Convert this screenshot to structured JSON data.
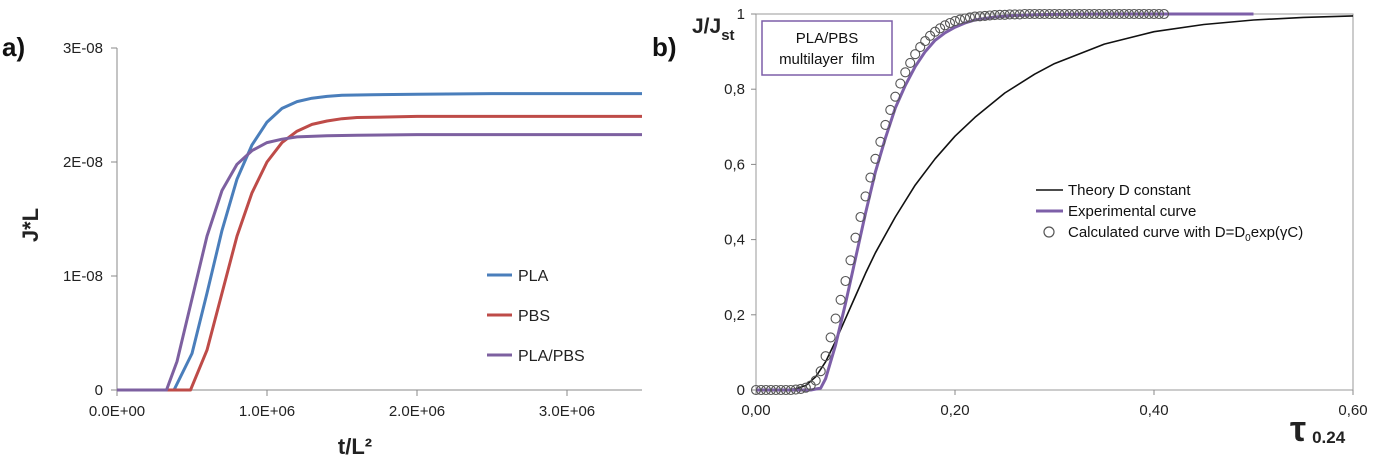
{
  "chart_data": [
    {
      "panel_label": "a)",
      "type": "line",
      "xlabel": "t/L²",
      "ylabel": "J*L",
      "xlim": [
        0,
        3500000
      ],
      "ylim": [
        0,
        3e-08
      ],
      "x_ticks": [
        {
          "value": 0,
          "label": "0.0E+00"
        },
        {
          "value": 1000000,
          "label": "1.0E+06"
        },
        {
          "value": 2000000,
          "label": "2.0E+06"
        },
        {
          "value": 3000000,
          "label": "3.0E+06"
        }
      ],
      "y_ticks": [
        {
          "value": 0,
          "label": "0"
        },
        {
          "value": 1e-08,
          "label": "1E-08"
        },
        {
          "value": 2e-08,
          "label": "2E-08"
        },
        {
          "value": 3e-08,
          "label": "3E-08"
        }
      ],
      "grid": false,
      "legend_position": "bottom-right",
      "series": [
        {
          "name": "PLA",
          "color": "#4a7ebb",
          "x": [
            0,
            380000,
            500000,
            600000,
            700000,
            800000,
            900000,
            1000000,
            1100000,
            1200000,
            1300000,
            1400000,
            1500000,
            1700000,
            2000000,
            2500000,
            3500000
          ],
          "y": [
            0,
            0,
            3.2e-09,
            8.5e-09,
            1.4e-08,
            1.85e-08,
            2.15e-08,
            2.35e-08,
            2.47e-08,
            2.53e-08,
            2.56e-08,
            2.575e-08,
            2.585e-08,
            2.59e-08,
            2.595e-08,
            2.6e-08,
            2.6e-08
          ]
        },
        {
          "name": "PBS",
          "color": "#be4b48",
          "x": [
            0,
            490000,
            600000,
            700000,
            800000,
            900000,
            1000000,
            1100000,
            1200000,
            1300000,
            1400000,
            1500000,
            1600000,
            1800000,
            2000000,
            2500000,
            3500000
          ],
          "y": [
            0,
            0,
            3.5e-09,
            8.5e-09,
            1.35e-08,
            1.73e-08,
            2e-08,
            2.17e-08,
            2.27e-08,
            2.33e-08,
            2.36e-08,
            2.38e-08,
            2.39e-08,
            2.395e-08,
            2.4e-08,
            2.4e-08,
            2.4e-08
          ]
        },
        {
          "name": "PLA/PBS",
          "color": "#7d60a0",
          "x": [
            0,
            330000,
            400000,
            500000,
            600000,
            700000,
            800000,
            900000,
            1000000,
            1100000,
            1200000,
            1400000,
            1600000,
            2000000,
            3500000
          ],
          "y": [
            0,
            0,
            2.5e-09,
            8e-09,
            1.35e-08,
            1.75e-08,
            1.98e-08,
            2.1e-08,
            2.17e-08,
            2.2e-08,
            2.22e-08,
            2.23e-08,
            2.235e-08,
            2.24e-08,
            2.24e-08
          ]
        }
      ]
    },
    {
      "panel_label": "b)",
      "type": "line",
      "xlabel": "τ",
      "xlabel_sub": "0.24",
      "ylabel": "J/J",
      "ylabel_sub": "st",
      "xlim": [
        0,
        0.6
      ],
      "ylim": [
        0,
        1
      ],
      "x_ticks": [
        {
          "value": 0,
          "label": "0,00"
        },
        {
          "value": 0.2,
          "label": "0,20"
        },
        {
          "value": 0.4,
          "label": "0,40"
        },
        {
          "value": 0.6,
          "label": "0,60"
        }
      ],
      "y_ticks": [
        {
          "value": 0,
          "label": "0"
        },
        {
          "value": 0.2,
          "label": "0,2"
        },
        {
          "value": 0.4,
          "label": "0,4"
        },
        {
          "value": 0.6,
          "label": "0,6"
        },
        {
          "value": 0.8,
          "label": "0,8"
        },
        {
          "value": 1,
          "label": "1"
        }
      ],
      "grid": false,
      "legend_position": "center-right",
      "annotation": {
        "line1": "PLA/PBS",
        "line2": "multilayer  film"
      },
      "series": [
        {
          "name": "Theory D constant",
          "style": "line",
          "color": "#111111",
          "x": [
            0,
            0.02,
            0.04,
            0.05,
            0.06,
            0.07,
            0.08,
            0.09,
            0.1,
            0.11,
            0.12,
            0.14,
            0.16,
            0.18,
            0.2,
            0.22,
            0.25,
            0.28,
            0.3,
            0.35,
            0.4,
            0.45,
            0.5,
            0.55,
            0.6
          ],
          "y": [
            0,
            0,
            0.003,
            0.012,
            0.035,
            0.075,
            0.13,
            0.19,
            0.25,
            0.31,
            0.365,
            0.46,
            0.545,
            0.615,
            0.675,
            0.725,
            0.79,
            0.84,
            0.868,
            0.92,
            0.953,
            0.972,
            0.984,
            0.991,
            0.995
          ]
        },
        {
          "name": "Experimental curve",
          "style": "line",
          "color": "#7d5fa8",
          "x": [
            0,
            0.055,
            0.065,
            0.07,
            0.08,
            0.09,
            0.1,
            0.11,
            0.12,
            0.13,
            0.14,
            0.15,
            0.16,
            0.17,
            0.18,
            0.19,
            0.2,
            0.21,
            0.22,
            0.24,
            0.26,
            0.28,
            0.3,
            0.35,
            0.4,
            0.5
          ],
          "y": [
            0,
            0,
            0.005,
            0.03,
            0.12,
            0.23,
            0.35,
            0.47,
            0.58,
            0.67,
            0.75,
            0.81,
            0.86,
            0.9,
            0.93,
            0.95,
            0.965,
            0.976,
            0.984,
            0.992,
            0.996,
            0.998,
            0.999,
            1,
            1,
            1
          ]
        },
        {
          "name": "Calculated curve with D=D0exp(γC)",
          "name_parts": {
            "prefix": "Calculated curve with D=D",
            "sub": "0",
            "suffix": "exp(γC)"
          },
          "style": "markers",
          "marker": "open-circle",
          "color": "#555555",
          "x": [
            0.0,
            0.005,
            0.01,
            0.015,
            0.02,
            0.025,
            0.03,
            0.035,
            0.04,
            0.045,
            0.05,
            0.055,
            0.06,
            0.065,
            0.07,
            0.075,
            0.08,
            0.085,
            0.09,
            0.095,
            0.1,
            0.105,
            0.11,
            0.115,
            0.12,
            0.125,
            0.13,
            0.135,
            0.14,
            0.145,
            0.15,
            0.155,
            0.16,
            0.165,
            0.17,
            0.175,
            0.18,
            0.185,
            0.19,
            0.195,
            0.2,
            0.205,
            0.21,
            0.215,
            0.22,
            0.225,
            0.23,
            0.235,
            0.24,
            0.245,
            0.25,
            0.255,
            0.26,
            0.265,
            0.27,
            0.275,
            0.28,
            0.285,
            0.29,
            0.295,
            0.3,
            0.305,
            0.31,
            0.315,
            0.32,
            0.325,
            0.33,
            0.335,
            0.34,
            0.345,
            0.35,
            0.355,
            0.36,
            0.365,
            0.37,
            0.375,
            0.38,
            0.385,
            0.39,
            0.395,
            0.4,
            0.405,
            0.41
          ],
          "y": [
            0.0,
            0.0,
            0.0,
            0.0,
            0.0,
            0.0,
            0.0,
            0.0,
            0.001,
            0.003,
            0.006,
            0.012,
            0.025,
            0.05,
            0.09,
            0.14,
            0.19,
            0.24,
            0.29,
            0.345,
            0.405,
            0.46,
            0.515,
            0.565,
            0.615,
            0.66,
            0.705,
            0.745,
            0.78,
            0.815,
            0.845,
            0.87,
            0.893,
            0.912,
            0.928,
            0.942,
            0.953,
            0.962,
            0.97,
            0.976,
            0.981,
            0.985,
            0.988,
            0.991,
            0.993,
            0.994,
            0.995,
            0.996,
            0.997,
            0.998,
            0.998,
            0.999,
            0.999,
            0.999,
            1.0,
            1.0,
            1.0,
            1.0,
            1.0,
            1.0,
            1.0,
            1.0,
            1.0,
            1.0,
            1.0,
            1.0,
            1.0,
            1.0,
            1.0,
            1.0,
            1.0,
            1.0,
            1.0,
            1.0,
            1.0,
            1.0,
            1.0,
            1.0,
            1.0,
            1.0,
            1.0,
            1.0,
            1.0
          ]
        }
      ]
    }
  ]
}
